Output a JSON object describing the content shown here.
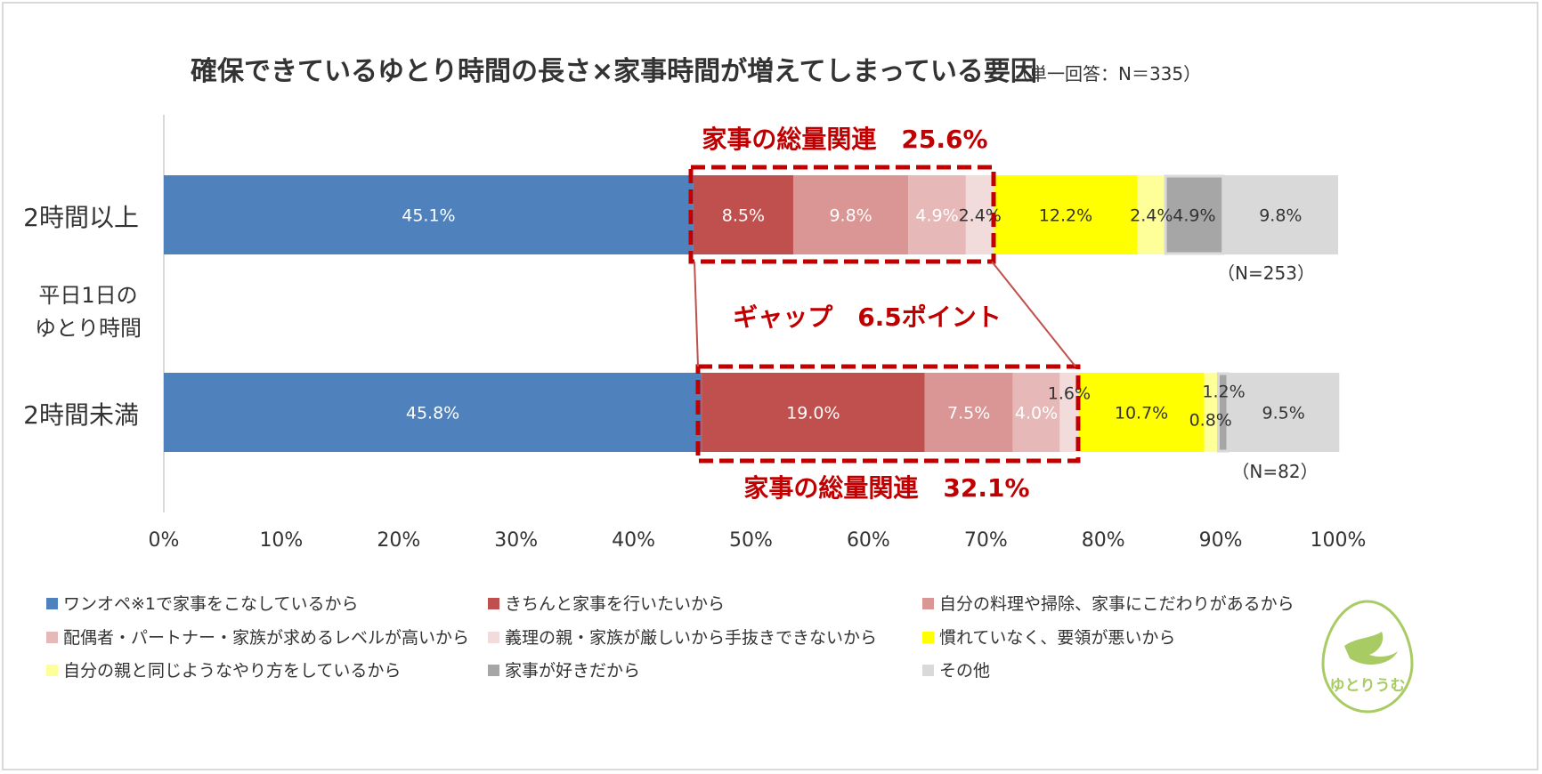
{
  "title": "確保できているゆとり時間の長さ×家事時間が増えてしまっている要因",
  "subtitle": "（単一回答：N＝335）",
  "axis_group_label": [
    "平日1日の",
    "ゆとり時間"
  ],
  "callouts": {
    "top": "家事の総量関連　25.6%",
    "gap": "ギャップ　6.5ポイント",
    "bottom": "家事の総量関連　32.1%"
  },
  "logo_text": "ゆとりうむ",
  "chart_data": {
    "type": "bar",
    "orientation": "horizontal",
    "stacked": "percent",
    "categories": [
      "2時間以上",
      "2時間未満"
    ],
    "category_n": [
      "（N=253）",
      "（N=82）"
    ],
    "xlim": [
      0,
      100
    ],
    "xticks": [
      "0%",
      "10%",
      "20%",
      "30%",
      "40%",
      "50%",
      "60%",
      "70%",
      "80%",
      "90%",
      "100%"
    ],
    "legend_position": "bottom",
    "series": [
      {
        "name": "ワンオペ※1で家事をこなしているから",
        "color": "#4f81bd",
        "values": [
          45.1,
          45.8
        ],
        "labels": [
          "45.1%",
          "45.8%"
        ],
        "label_color": "#ffffff"
      },
      {
        "name": "きちんと家事を行いたいから",
        "color": "#c0504d",
        "values": [
          8.5,
          19.0
        ],
        "labels": [
          "8.5%",
          "19.0%"
        ],
        "label_color": "#ffffff"
      },
      {
        "name": "自分の料理や掃除、家事にこだわりがあるから",
        "color": "#d99694",
        "values": [
          9.8,
          7.5
        ],
        "labels": [
          "9.8%",
          "7.5%"
        ],
        "label_color": "#ffffff"
      },
      {
        "name": "配偶者・パートナー・家族が求めるレベルが高いから",
        "color": "#e6b9b8",
        "values": [
          4.9,
          4.0
        ],
        "labels": [
          "4.9%",
          "4.0%"
        ],
        "label_color": "#ffffff"
      },
      {
        "name": "義理の親・家族が厳しいから手抜きできないから",
        "color": "#f2dcdb",
        "values": [
          2.4,
          1.6
        ],
        "labels": [
          "2.4%",
          "1.6%"
        ],
        "label_color": "#333333"
      },
      {
        "name": "慣れていなく、要領が悪いから",
        "color": "#ffff00",
        "values": [
          12.2,
          10.7
        ],
        "labels": [
          "12.2%",
          "10.7%"
        ],
        "label_color": "#333333"
      },
      {
        "name": "自分の親と同じようなやり方をしているから",
        "color": "#ffff99",
        "values": [
          2.4,
          1.2
        ],
        "labels": [
          "2.4%",
          "1.2%"
        ],
        "label_color": "#333333"
      },
      {
        "name": "家事が好きだから",
        "color": "#a6a6a6",
        "values": [
          4.9,
          0.8
        ],
        "labels": [
          "4.9%",
          "0.8%"
        ],
        "label_color": "#333333"
      },
      {
        "name": "その他",
        "color": "#d9d9d9",
        "values": [
          9.8,
          9.5
        ],
        "labels": [
          "9.8%",
          "9.5%"
        ],
        "label_color": "#333333"
      }
    ]
  }
}
